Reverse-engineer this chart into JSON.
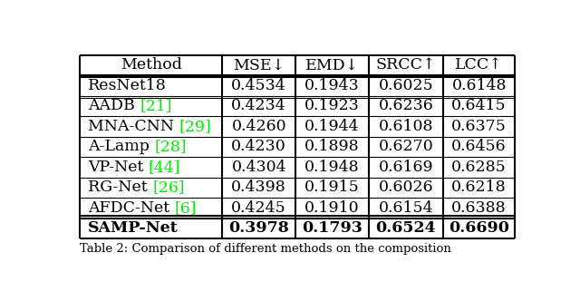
{
  "headers": [
    "Method",
    "MSE↓",
    "EMD↓",
    "SRCC↑",
    "LCC↑"
  ],
  "rows": [
    {
      "method_text": "ResNet18",
      "citation": "",
      "values": [
        "0.4534",
        "0.1943",
        "0.6025",
        "0.6148"
      ],
      "bold": false,
      "group": 0
    },
    {
      "method_text": "AADB ",
      "citation": "[21]",
      "values": [
        "0.4234",
        "0.1923",
        "0.6236",
        "0.6415"
      ],
      "bold": false,
      "group": 1
    },
    {
      "method_text": "MNA-CNN ",
      "citation": "[29]",
      "values": [
        "0.4260",
        "0.1944",
        "0.6108",
        "0.6375"
      ],
      "bold": false,
      "group": 1
    },
    {
      "method_text": "A-Lamp ",
      "citation": "[28]",
      "values": [
        "0.4230",
        "0.1898",
        "0.6270",
        "0.6456"
      ],
      "bold": false,
      "group": 1
    },
    {
      "method_text": "VP-Net ",
      "citation": "[44]",
      "values": [
        "0.4304",
        "0.1948",
        "0.6169",
        "0.6285"
      ],
      "bold": false,
      "group": 1
    },
    {
      "method_text": "RG-Net ",
      "citation": "[26]",
      "values": [
        "0.4398",
        "0.1915",
        "0.6026",
        "0.6218"
      ],
      "bold": false,
      "group": 1
    },
    {
      "method_text": "AFDC-Net ",
      "citation": "[6]",
      "values": [
        "0.4245",
        "0.1910",
        "0.6154",
        "0.6388"
      ],
      "bold": false,
      "group": 1
    },
    {
      "method_text": "SAMP-Net",
      "citation": "",
      "values": [
        "0.3978",
        "0.1793",
        "0.6524",
        "0.6690"
      ],
      "bold": true,
      "group": 2
    }
  ],
  "caption": "Table 2: Comparison of different methods on the composition",
  "bg_color": "#ffffff",
  "line_color": "#000000",
  "citation_color": "#00ee00",
  "font_size": 12.5,
  "caption_font_size": 9.5
}
